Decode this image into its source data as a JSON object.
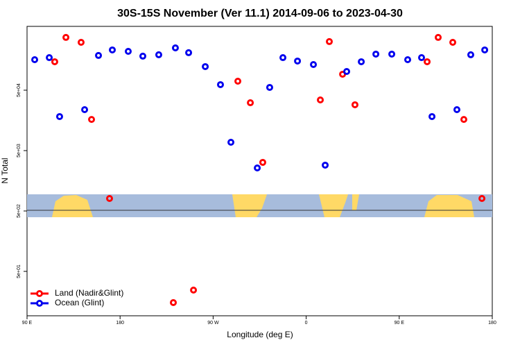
{
  "chart_data": {
    "type": "scatter",
    "title": "30S-15S November (Ver 11.1)   2014-09-06 to 2023-04-30",
    "x_label": "Longitude (deg E)",
    "y_label": "N Total",
    "log_y": true,
    "legend": "bottom-left",
    "xlim": [
      90,
      540
    ],
    "xticks": [
      {
        "value": 90,
        "label": "90 E"
      },
      {
        "value": 180,
        "label": "180"
      },
      {
        "value": 270,
        "label": "90 W"
      },
      {
        "value": 360,
        "label": "0"
      },
      {
        "value": 450,
        "label": "90 E"
      },
      {
        "value": 540,
        "label": "180"
      }
    ],
    "ylim": [
      9.2,
      570000
    ],
    "yticks": [
      {
        "value": 50,
        "label": "5e+01"
      },
      {
        "value": 500,
        "label": "5e+02"
      },
      {
        "value": 5000,
        "label": "5e+03"
      },
      {
        "value": 50000,
        "label": "5e+04"
      }
    ],
    "series": [
      {
        "name": "Land (Nadir&Glint)",
        "color": "#ff0000",
        "x": [
          116.8,
          127.6,
          142.3,
          152.4,
          169.8,
          231.5,
          251,
          293.9,
          306,
          318,
          373.7,
          382.4,
          395.2,
          407.2,
          477,
          487.7,
          501.8,
          512.5,
          530
        ],
        "values": [
          148000,
          374000,
          310000,
          16400,
          805,
          15.2,
          24.5,
          70500,
          31000,
          3190,
          34500,
          319000,
          91900,
          28700,
          148000,
          374000,
          310000,
          16400,
          805
        ]
      },
      {
        "name": "Ocean (Glint)",
        "color": "#0000ee",
        "x": [
          97.4,
          111.5,
          121.5,
          145.7,
          159.1,
          172.5,
          187.9,
          202,
          217.4,
          233.5,
          246.3,
          262.4,
          277.1,
          287.2,
          312.7,
          324.7,
          337.5,
          351.6,
          367,
          378.4,
          399.2,
          413.3,
          427.4,
          442.8,
          458.2,
          471.6,
          481.7,
          505.8,
          519.2,
          532.7
        ],
        "values": [
          160000,
          173000,
          18300,
          23800,
          188000,
          232000,
          220000,
          183000,
          193000,
          251000,
          209000,
          123000,
          61800,
          6870,
          2580,
          55600,
          173000,
          152000,
          133000,
          2870,
          102000,
          148000,
          198000,
          198000,
          160000,
          173000,
          18300,
          23800,
          193000,
          232000
        ]
      }
    ]
  }
}
